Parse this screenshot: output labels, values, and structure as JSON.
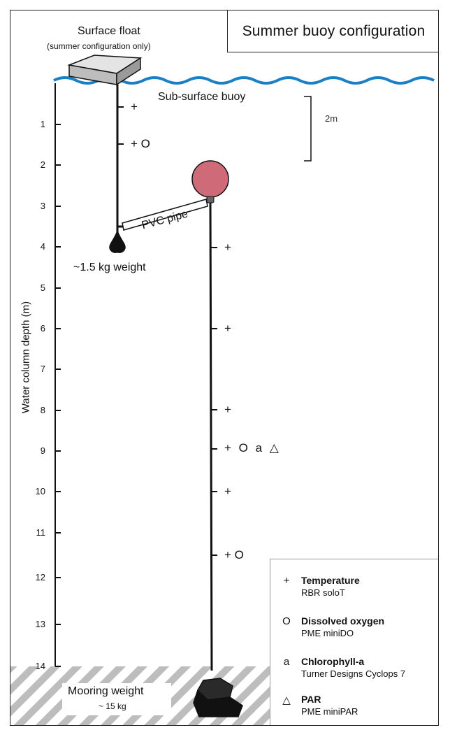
{
  "title": "Summer buoy configuration",
  "surface_float": {
    "label": "Surface float",
    "note": "(summer configuration only)"
  },
  "subsurface_buoy_label": "Sub-surface buoy",
  "scale_bar_label": "2m",
  "pvc_pipe_label": "PVC pipe",
  "small_weight_label": "~1.5 kg weight",
  "mooring_weight": {
    "label": "Mooring weight",
    "sub": "~ 15 kg"
  },
  "axis": {
    "label": "Water column depth (m)",
    "ticks": [
      "1",
      "2",
      "3",
      "4",
      "5",
      "6",
      "7",
      "8",
      "9",
      "10",
      "11",
      "12",
      "13",
      "14"
    ]
  },
  "sensors_left": [
    "+",
    "+ O"
  ],
  "sensors_right": [
    "+",
    "+",
    "+",
    "+ O a △",
    "+",
    "+ O"
  ],
  "legend": [
    {
      "symbol": "+",
      "title": "Temperature",
      "sub": "RBR soloT"
    },
    {
      "symbol": "O",
      "title": "Dissolved oxygen",
      "sub": "PME miniDO"
    },
    {
      "symbol": "a",
      "title": "Chlorophyll-a",
      "sub": "Turner Designs Cyclops 7"
    },
    {
      "symbol": "△",
      "title": "PAR",
      "sub": "PME miniPAR"
    }
  ],
  "colors": {
    "water": "#1a7fc4",
    "buoy": "#cf6b78",
    "weight": "#222222",
    "hatch": "#bbbbbb"
  }
}
